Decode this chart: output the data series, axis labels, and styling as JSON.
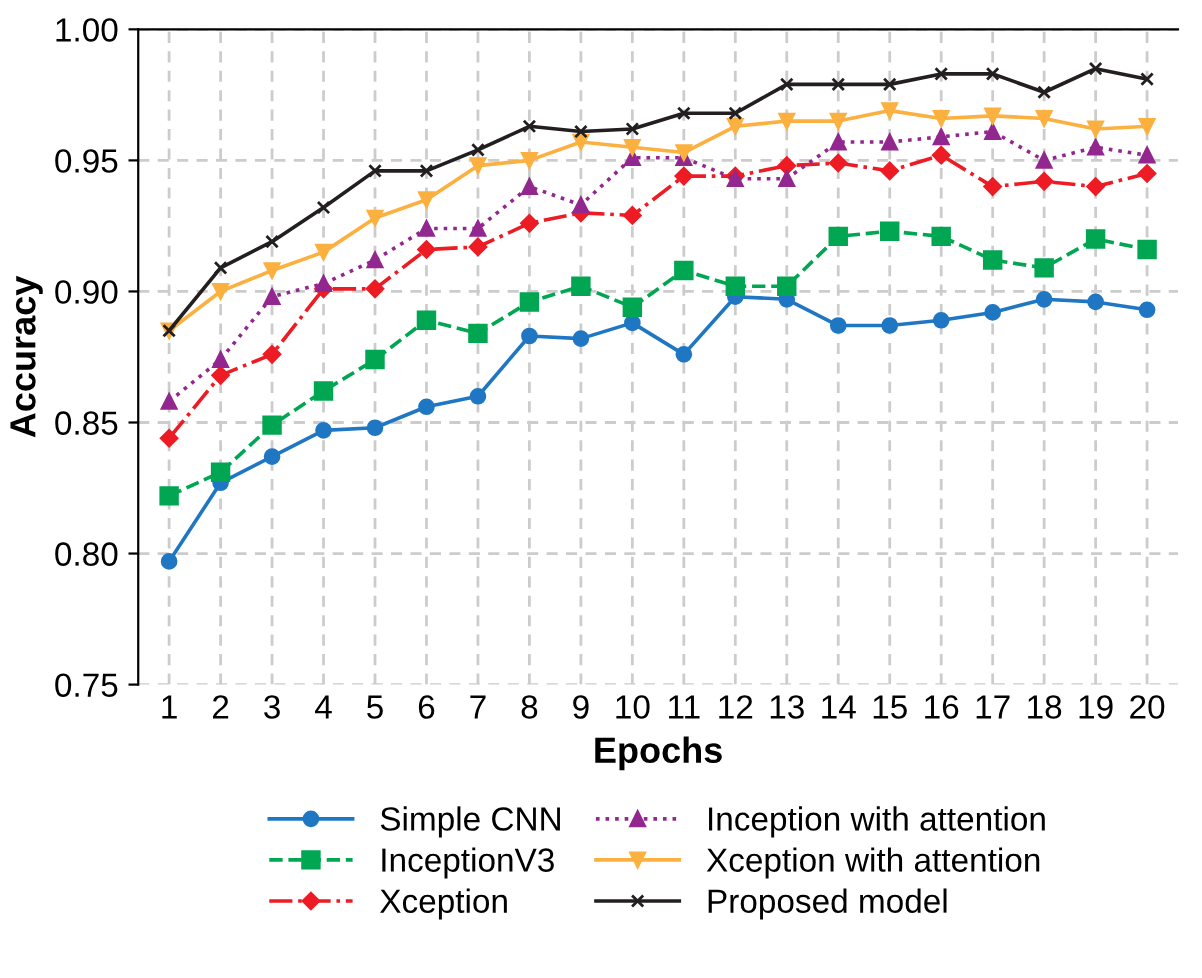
{
  "chart_data": {
    "type": "line",
    "xlabel": "Epochs",
    "ylabel": "Accuracy",
    "categories": [
      "1",
      "2",
      "3",
      "4",
      "5",
      "6",
      "7",
      "8",
      "9",
      "10",
      "11",
      "12",
      "13",
      "14",
      "15",
      "16",
      "17",
      "18",
      "19",
      "20"
    ],
    "ylim": [
      0.75,
      1.0
    ],
    "yticks": [
      {
        "value": 0.75,
        "label": "0.75"
      },
      {
        "value": 0.8,
        "label": "0.80"
      },
      {
        "value": 0.85,
        "label": "0.85"
      },
      {
        "value": 0.9,
        "label": "0.90"
      },
      {
        "value": 0.95,
        "label": "0.95"
      },
      {
        "value": 1.0,
        "label": "1.00"
      }
    ],
    "grid": true,
    "legend": "bottom",
    "series": [
      {
        "name": "Simple CNN",
        "color": "#1f77c4",
        "marker": "circle",
        "line_style": "solid",
        "values": [
          0.797,
          0.827,
          0.837,
          0.847,
          0.848,
          0.856,
          0.86,
          0.883,
          0.882,
          0.888,
          0.876,
          0.898,
          0.897,
          0.887,
          0.887,
          0.889,
          0.892,
          0.897,
          0.896,
          0.893
        ]
      },
      {
        "name": "InceptionV3",
        "color": "#00a651",
        "marker": "square",
        "line_style": "dashed",
        "values": [
          0.822,
          0.831,
          0.849,
          0.862,
          0.874,
          0.889,
          0.884,
          0.896,
          0.902,
          0.894,
          0.908,
          0.902,
          0.902,
          0.921,
          0.923,
          0.921,
          0.912,
          0.909,
          0.92,
          0.916
        ]
      },
      {
        "name": "Xception",
        "color": "#ed1c24",
        "marker": "diamond",
        "line_style": "dashdot",
        "values": [
          0.844,
          0.868,
          0.876,
          0.901,
          0.901,
          0.916,
          0.917,
          0.926,
          0.93,
          0.929,
          0.944,
          0.944,
          0.948,
          0.949,
          0.946,
          0.952,
          0.94,
          0.942,
          0.94,
          0.945
        ]
      },
      {
        "name": "Inception with attention",
        "color": "#92278f",
        "marker": "triangle",
        "line_style": "dotted",
        "values": [
          0.858,
          0.874,
          0.898,
          0.903,
          0.912,
          0.924,
          0.924,
          0.94,
          0.933,
          0.951,
          0.951,
          0.943,
          0.943,
          0.957,
          0.957,
          0.959,
          0.961,
          0.95,
          0.955,
          0.952
        ]
      },
      {
        "name": "Xception with attention",
        "color": "#fbb040",
        "marker": "triangle_down",
        "line_style": "solid",
        "values": [
          0.885,
          0.9,
          0.908,
          0.915,
          0.928,
          0.935,
          0.948,
          0.95,
          0.957,
          0.955,
          0.953,
          0.963,
          0.965,
          0.965,
          0.969,
          0.966,
          0.967,
          0.966,
          0.962,
          0.963
        ]
      },
      {
        "name": "Proposed model",
        "color": "#231f20",
        "marker": "cross",
        "line_style": "solid",
        "values": [
          0.885,
          0.909,
          0.919,
          0.932,
          0.946,
          0.946,
          0.954,
          0.963,
          0.961,
          0.962,
          0.968,
          0.968,
          0.979,
          0.979,
          0.979,
          0.983,
          0.983,
          0.976,
          0.985,
          0.981
        ]
      }
    ]
  }
}
